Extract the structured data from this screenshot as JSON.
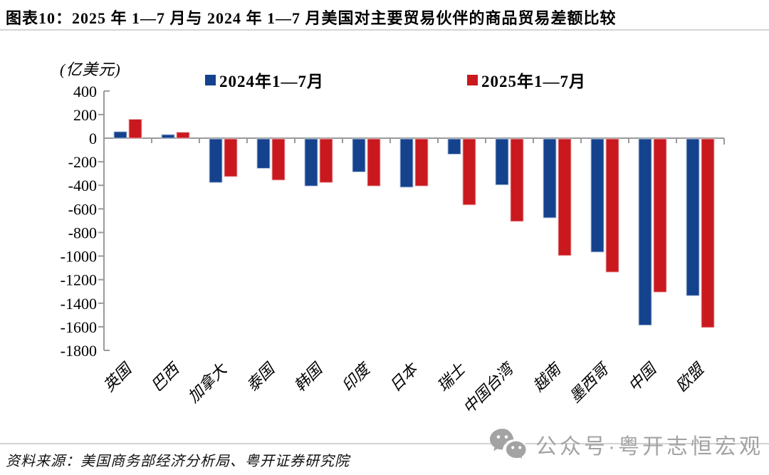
{
  "header": {
    "title": "图表10：2025 年 1—7 月与 2024 年 1—7 月美国对主要贸易伙伴的商品贸易差额比较"
  },
  "chart": {
    "unit_label": "(亿美元)",
    "legend": [
      {
        "label": "2024年1—7月",
        "color": "#14428D"
      },
      {
        "label": "2025年1—7月",
        "color": "#C9191F"
      }
    ]
  },
  "chart_data": {
    "type": "bar",
    "title": "2025年1—7月与2024年1—7月美国对主要贸易伙伴的商品贸易差额比较",
    "ylabel": "(亿美元)",
    "categories": [
      "英国",
      "巴西",
      "加拿大",
      "泰国",
      "韩国",
      "印度",
      "日本",
      "瑞士",
      "中国台湾",
      "越南",
      "墨西哥",
      "中国",
      "欧盟"
    ],
    "series": [
      {
        "name": "2024年1—7月",
        "color": "#14428D",
        "edge": "#b9c8e2",
        "values": [
          55,
          30,
          -370,
          -250,
          -400,
          -280,
          -410,
          -130,
          -390,
          -670,
          -960,
          -1580,
          -1330
        ]
      },
      {
        "name": "2025年1—7月",
        "color": "#C9191F",
        "edge": "#f0b7ba",
        "values": [
          160,
          50,
          -320,
          -350,
          -370,
          -400,
          -400,
          -560,
          -700,
          -990,
          -1130,
          -1300,
          -1600
        ]
      }
    ],
    "ylim": [
      -1800,
      400
    ],
    "yticks": [
      400,
      200,
      0,
      -200,
      -400,
      -600,
      -800,
      -1000,
      -1200,
      -1400,
      -1600,
      -1800
    ],
    "grid": false,
    "legend_position": "top",
    "axis_color": "#9a9a9a"
  },
  "footer": {
    "source": "资料来源：美国商务部经济分析局、粤开证券研究院"
  },
  "watermark": {
    "icon": "wechat-icon",
    "text": "公众号·粤开志恒宏观"
  }
}
